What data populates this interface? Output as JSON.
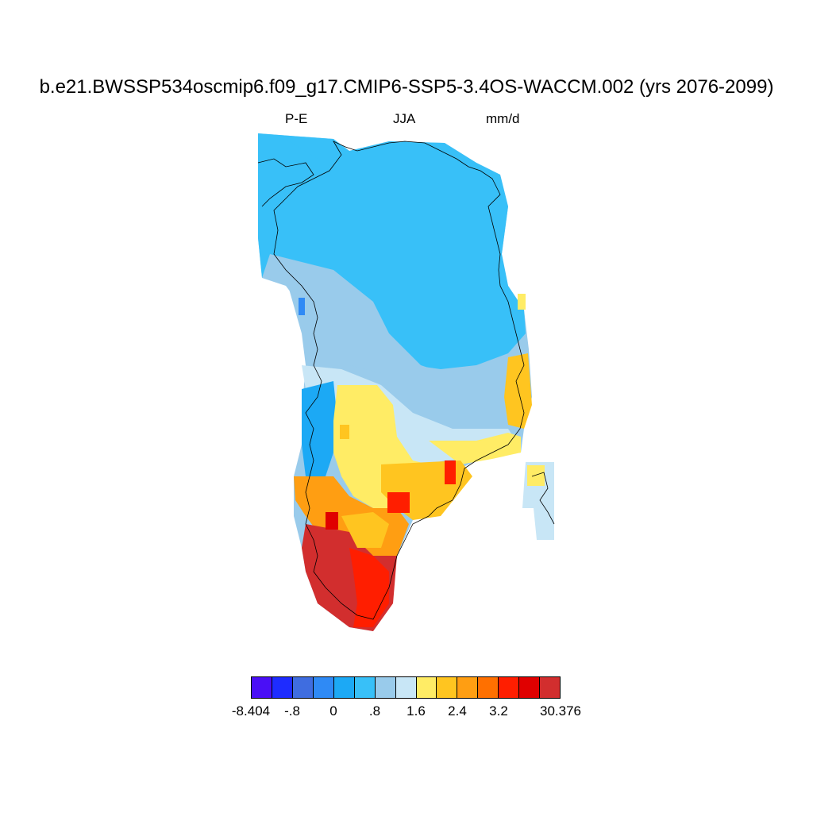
{
  "title": "b.e21.BWSSP534oscmip6.f09_g17.CMIP6-SSP5-3.4OS-WACCM.002 (yrs 2076-2099)",
  "subtitle": {
    "variable": "P-E",
    "season": "JJA",
    "units": "mm/d"
  },
  "map": {
    "region": "Greenland",
    "coastline_color": "#000000",
    "description_classes": {
      "north_interior": "#38c0f8",
      "central_band": "#99cbeb",
      "central_east_band": "#c8e6f6",
      "south_interior": "#ffec65",
      "southeast_coast": "#ffc520",
      "south_tip": "#d22e2e"
    }
  },
  "colorbar": {
    "colors": [
      "#4a0ff6",
      "#1e2cff",
      "#3f6de0",
      "#2f8af5",
      "#1ca9f5",
      "#38c0f8",
      "#99cbeb",
      "#c8e6f6",
      "#ffec65",
      "#ffc520",
      "#ff9e12",
      "#ff7000",
      "#ff1e00",
      "#e00000",
      "#d22e2e"
    ],
    "labels": [
      "-8.404",
      "-.8",
      "0",
      ".8",
      "1.6",
      "2.4",
      "3.2",
      "30.376"
    ]
  }
}
